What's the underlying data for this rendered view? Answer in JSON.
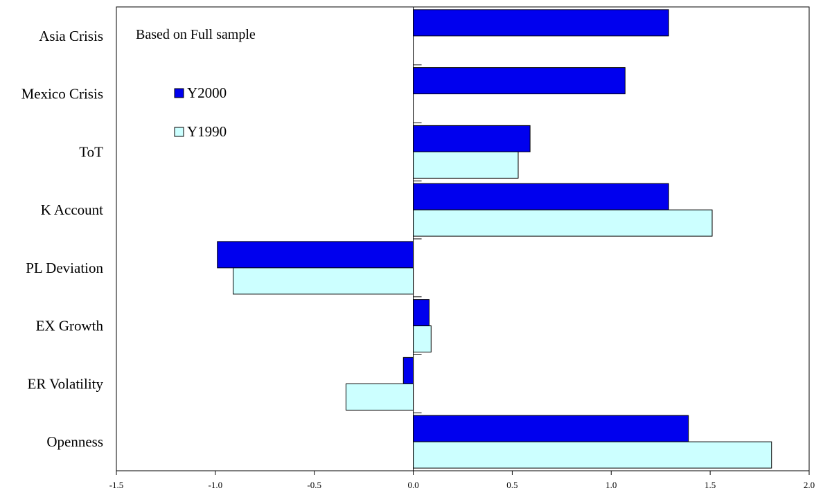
{
  "chart_data": {
    "type": "bar",
    "orientation": "horizontal",
    "categories": [
      "Asia Crisis",
      "Mexico Crisis",
      "ToT",
      "K Account",
      "PL Deviation",
      "EX Growth",
      "ER Volatility",
      "Openness"
    ],
    "series": [
      {
        "name": "Y2000",
        "color": "#0000ee",
        "values": [
          1.29,
          1.07,
          0.59,
          1.29,
          -0.99,
          0.08,
          -0.05,
          1.39
        ]
      },
      {
        "name": "Y1990",
        "color": "#ccffff",
        "values": [
          null,
          null,
          0.53,
          1.51,
          -0.91,
          0.09,
          -0.34,
          1.81
        ]
      }
    ],
    "xlim": [
      -1.5,
      2.0
    ],
    "xticks": [
      "-1.5",
      "-1.0",
      "-0.5",
      "0.0",
      "0.5",
      "1.0",
      "1.5",
      "2.0"
    ],
    "annotation": "Based on Full sample",
    "legend_position": "upper-left inside plot",
    "grid": false
  }
}
